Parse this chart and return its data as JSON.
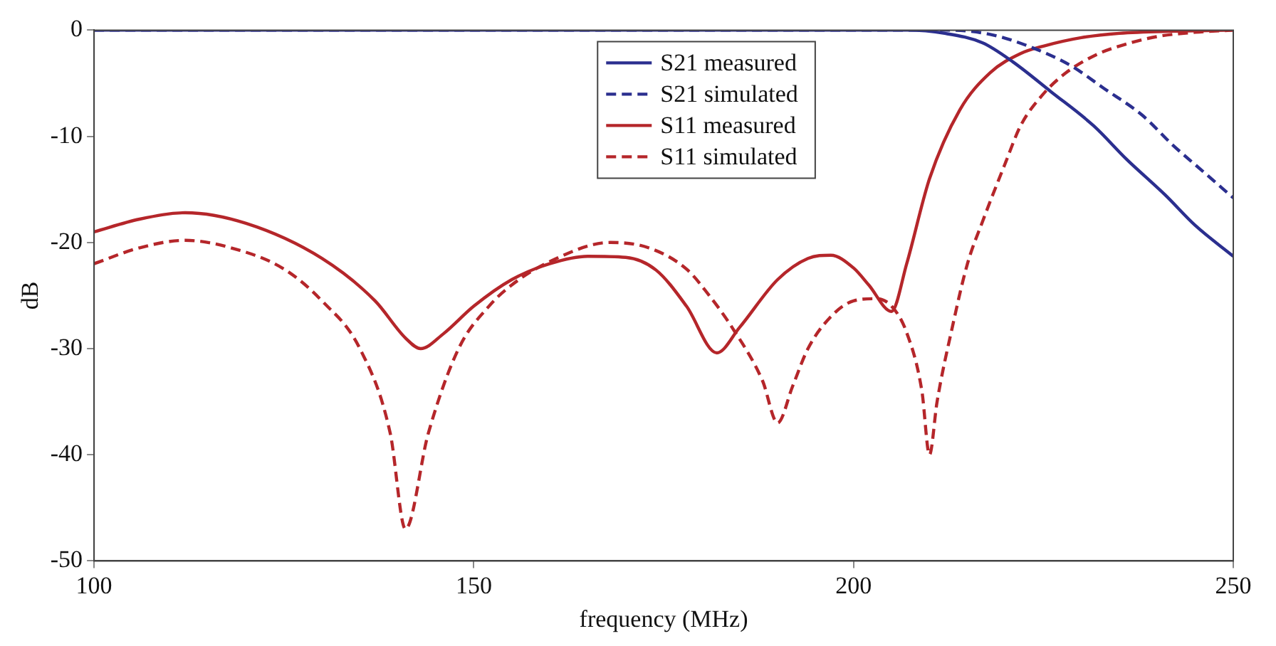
{
  "chart_data": {
    "type": "line",
    "xlabel": "frequency (MHz)",
    "ylabel": "dB",
    "xlim": [
      100,
      250
    ],
    "ylim": [
      -50,
      0
    ],
    "xticks": [
      100,
      150,
      200,
      250
    ],
    "yticks": [
      -50,
      -40,
      -30,
      -20,
      -10,
      0
    ],
    "grid": false,
    "legend": "top",
    "marker": "none",
    "series": [
      {
        "name": "S21 measured",
        "color": "#2b2f8f",
        "line_style": "solid",
        "x": [
          100,
          207,
          212,
          217,
          221,
          226,
          231.6,
          236,
          241,
          245,
          250
        ],
        "values": [
          0,
          0,
          -0.3,
          -1.2,
          -3,
          -5.8,
          -9,
          -12.2,
          -15.5,
          -18.4,
          -21.3
        ]
      },
      {
        "name": "S21 simulated",
        "color": "#2b2f8f",
        "line_style": "dashed",
        "x": [
          100,
          212.7,
          218,
          223,
          228.5,
          233,
          238,
          242,
          246,
          250
        ],
        "values": [
          0,
          0,
          -0.4,
          -1.5,
          -3.3,
          -5.5,
          -8,
          -10.8,
          -13.3,
          -15.8
        ]
      },
      {
        "name": "S11 measured",
        "color": "#b5262a",
        "line_style": "solid",
        "x": [
          100,
          106,
          112,
          120,
          130,
          137,
          141,
          143,
          146,
          150,
          155,
          160,
          165,
          170,
          174,
          178,
          182,
          185,
          190,
          194,
          197,
          200,
          202,
          205,
          207,
          210,
          214,
          218,
          222,
          225,
          230,
          235,
          242,
          250
        ],
        "values": [
          -19,
          -17.8,
          -17.2,
          -18.2,
          -21.5,
          -25.5,
          -29,
          -30,
          -28.6,
          -26,
          -23.5,
          -22,
          -21.3,
          -21.4,
          -22.6,
          -26,
          -30.4,
          -28,
          -23.5,
          -21.5,
          -21.2,
          -22.4,
          -24,
          -26.5,
          -22,
          -14,
          -7.5,
          -4,
          -2.2,
          -1.5,
          -0.7,
          -0.3,
          -0.1,
          0
        ]
      },
      {
        "name": "S11 simulated",
        "color": "#b5262a",
        "line_style": "dashed",
        "x": [
          100,
          106,
          112,
          118,
          125,
          130,
          135,
          139,
          141,
          144,
          148,
          152,
          155,
          160,
          168,
          173,
          178,
          181,
          184,
          188,
          190,
          192,
          194,
          197,
          200,
          203,
          205,
          207,
          209,
          210,
          211,
          213,
          215,
          217,
          220,
          222,
          225,
          228,
          232,
          235,
          240,
          245,
          250
        ],
        "values": [
          -22,
          -20.5,
          -19.8,
          -20.5,
          -22.5,
          -25.5,
          -30,
          -38,
          -47,
          -38,
          -30,
          -26,
          -24,
          -21.8,
          -20,
          -20.5,
          -22.5,
          -25,
          -28,
          -33,
          -37,
          -33.5,
          -30,
          -27,
          -25.5,
          -25.3,
          -26,
          -28.5,
          -34,
          -40,
          -35,
          -28,
          -22,
          -18,
          -12.5,
          -9,
          -6,
          -4,
          -2.3,
          -1.5,
          -0.6,
          -0.2,
          0
        ]
      }
    ]
  }
}
